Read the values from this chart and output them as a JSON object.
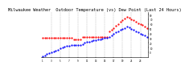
{
  "title": "Milwaukee Weather  Outdoor Temperature (vs) Dew Point (Last 24 Hours)",
  "title_fontsize": 3.8,
  "background_color": "#ffffff",
  "grid_color": "#aaaaaa",
  "temp_color": "#ff0000",
  "dew_color": "#0000ff",
  "ylim": [
    -10,
    85
  ],
  "yticks": [
    0,
    10,
    20,
    30,
    40,
    50,
    60,
    70,
    80
  ],
  "ytick_labels": [
    "0",
    "10",
    "20",
    "30",
    "40",
    "50",
    "60",
    "70",
    "80"
  ],
  "temp_x": [
    0,
    1,
    2,
    3,
    4,
    5,
    6,
    7,
    8,
    9,
    10,
    11,
    12,
    13,
    14,
    15,
    16,
    17,
    18,
    19,
    20,
    21,
    22,
    23,
    24,
    25,
    26,
    27,
    28,
    29,
    30,
    31,
    32,
    33,
    34,
    35,
    36,
    37,
    38,
    39,
    40,
    41,
    42,
    43,
    44,
    45,
    46,
    47
  ],
  "temp_y": [
    30,
    30,
    30,
    30,
    30,
    30,
    30,
    30,
    30,
    30,
    30,
    30,
    30,
    30,
    28,
    28,
    28,
    28,
    33,
    33,
    33,
    33,
    33,
    33,
    33,
    33,
    33,
    33,
    33,
    33,
    45,
    48,
    52,
    56,
    60,
    65,
    68,
    72,
    75,
    73,
    70,
    68,
    65,
    62,
    60,
    58,
    55,
    52
  ],
  "dew_x": [
    0,
    1,
    2,
    3,
    4,
    5,
    6,
    7,
    8,
    9,
    10,
    11,
    12,
    13,
    14,
    15,
    16,
    17,
    18,
    19,
    20,
    21,
    22,
    23,
    24,
    25,
    26,
    27,
    28,
    29,
    30,
    31,
    32,
    33,
    34,
    35,
    36,
    37,
    38,
    39,
    40,
    41,
    42,
    43,
    44,
    45,
    46,
    47
  ],
  "dew_y": [
    -8,
    -6,
    -4,
    -2,
    0,
    2,
    4,
    6,
    8,
    10,
    12,
    13,
    14,
    15,
    15,
    15,
    15,
    15,
    18,
    20,
    22,
    23,
    24,
    25,
    26,
    27,
    28,
    29,
    30,
    31,
    33,
    36,
    39,
    42,
    45,
    48,
    50,
    52,
    54,
    53,
    50,
    48,
    45,
    42,
    40,
    38,
    36,
    33
  ],
  "xlim": [
    -0.5,
    47.5
  ],
  "xtick_positions": [
    0,
    4,
    8,
    12,
    16,
    20,
    24,
    28,
    32,
    36,
    40,
    44
  ],
  "xtick_labels": [
    "1",
    "3",
    "5",
    "7",
    "9",
    "11",
    "13",
    "15",
    "17",
    "19",
    "21",
    "23"
  ],
  "marker_size": 1.2,
  "vgrid_positions": [
    4,
    8,
    12,
    16,
    20,
    24,
    28,
    32,
    36,
    40,
    44
  ]
}
